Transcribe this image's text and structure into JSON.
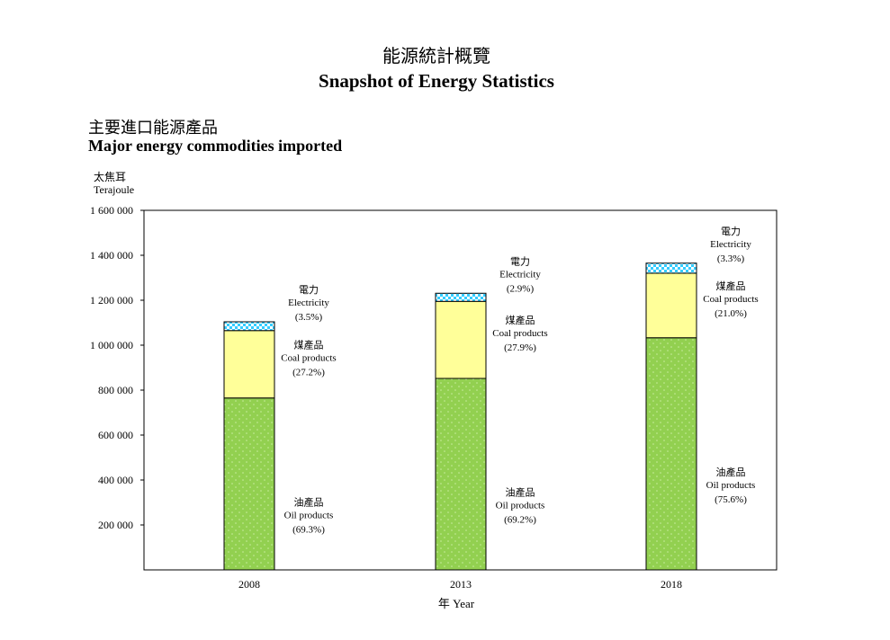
{
  "header": {
    "title_zh": "能源統計概覽",
    "title_en": "Snapshot of Energy Statistics",
    "subtitle_zh": "主要進口能源產品",
    "subtitle_en": "Major energy commodities imported",
    "unit_zh": "太焦耳",
    "unit_en": "Terajoule"
  },
  "chart_data": {
    "type": "bar",
    "stacked": true,
    "title": "Major energy commodities imported",
    "ylabel": "Terajoule",
    "xlabel_zh": "年",
    "xlabel_en": "Year",
    "ylim": [
      0,
      1600000
    ],
    "y_ticks": [
      200000,
      400000,
      600000,
      800000,
      1000000,
      1200000,
      1400000,
      1600000
    ],
    "y_tick_labels": [
      "200 000",
      "400 000",
      "600 000",
      "800 000",
      "1 000 000",
      "1 200 000",
      "1 400 000",
      "1 600 000"
    ],
    "categories": [
      "2008",
      "2013",
      "2018"
    ],
    "series": [
      {
        "name_zh": "油產品",
        "name_en": "Oil products",
        "color": "#92d050",
        "values": [
          765000,
          852000,
          1033000
        ],
        "pct_labels": [
          "(69.3%)",
          "(69.2%)",
          "(75.6%)"
        ]
      },
      {
        "name_zh": "煤產品",
        "name_en": "Coal products",
        "color": "#ffff99",
        "values": [
          300000,
          343000,
          287000
        ],
        "pct_labels": [
          "(27.2%)",
          "(27.9%)",
          "(21.0%)"
        ]
      },
      {
        "name_zh": "電力",
        "name_en": "Electricity",
        "color": "#33ccff",
        "values": [
          39000,
          36000,
          45000
        ],
        "pct_labels": [
          "(3.5%)",
          "(2.9%)",
          "(3.3%)"
        ]
      }
    ]
  }
}
